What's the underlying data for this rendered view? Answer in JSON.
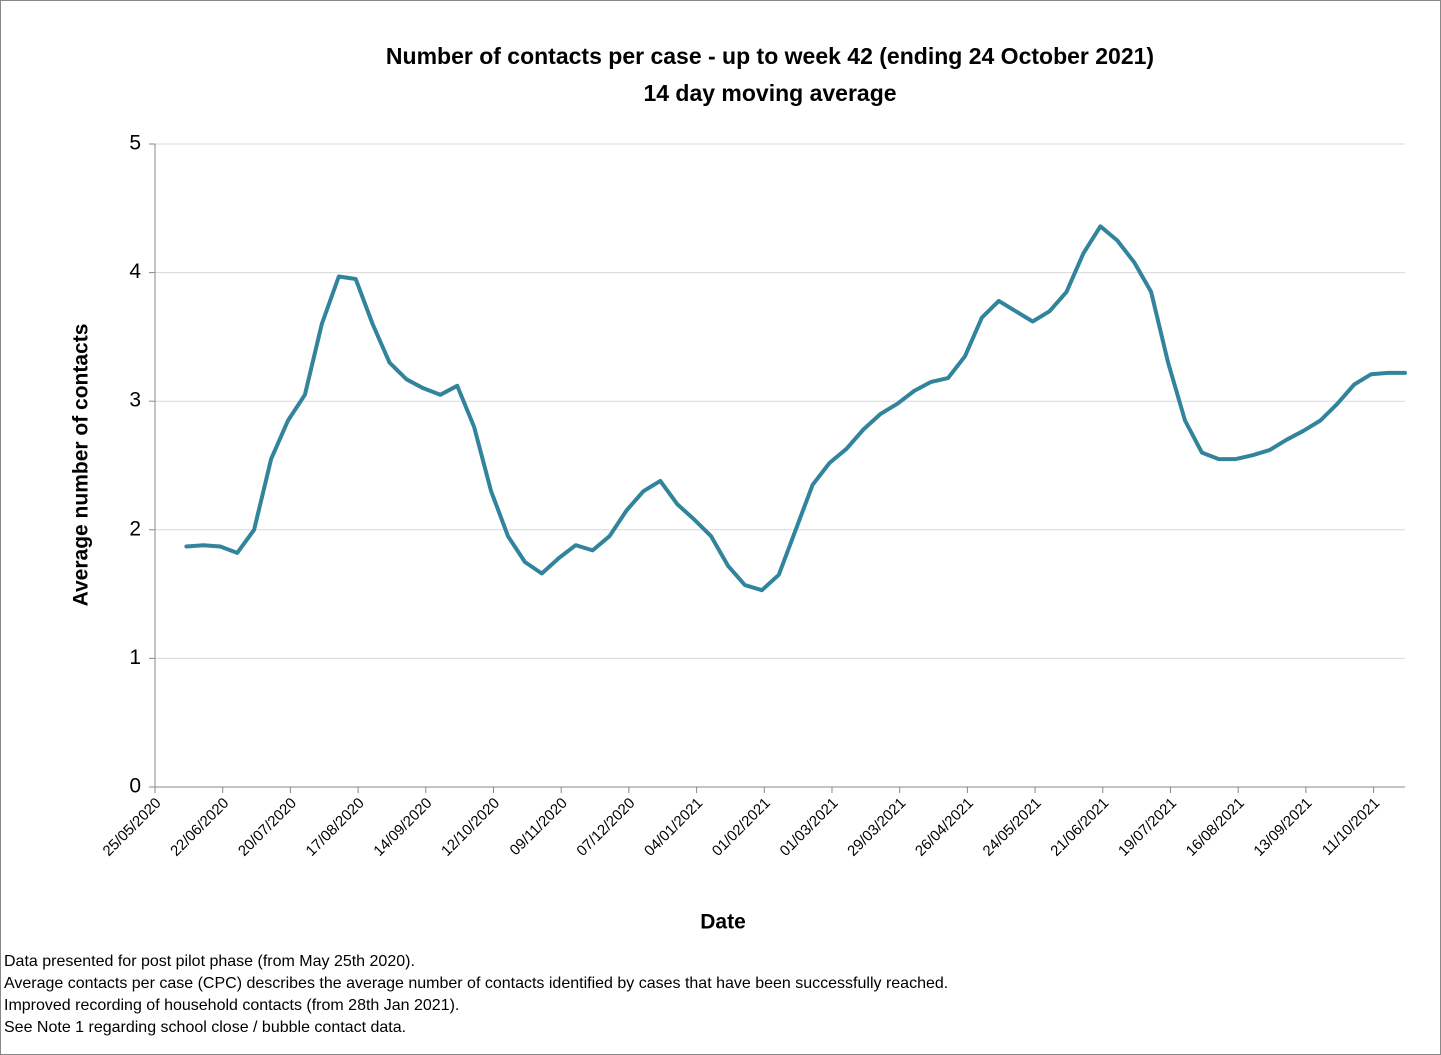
{
  "chart_data": {
    "type": "line",
    "title": "Number of contacts per case - up to week 42 (ending 24 October 2021)",
    "subtitle": "14 day moving average",
    "x_label": "Date",
    "y_label": "Average number of contacts",
    "color": "#31849b",
    "grid": true,
    "xlim": [
      "25/05/2020",
      "24/10/2021"
    ],
    "xticks": [
      "25/05/2020",
      "22/06/2020",
      "20/07/2020",
      "17/08/2020",
      "14/09/2020",
      "12/10/2020",
      "09/11/2020",
      "07/12/2020",
      "04/01/2021",
      "01/02/2021",
      "01/03/2021",
      "29/03/2021",
      "26/04/2021",
      "24/05/2021",
      "21/06/2021",
      "19/07/2021",
      "16/08/2021",
      "13/09/2021",
      "11/10/2021"
    ],
    "ylim": [
      0,
      5
    ],
    "yticks": [
      0,
      1,
      2,
      3,
      4,
      5
    ],
    "x": [
      "07/06/2020",
      "14/06/2020",
      "21/06/2020",
      "28/06/2020",
      "05/07/2020",
      "12/07/2020",
      "19/07/2020",
      "26/07/2020",
      "02/08/2020",
      "09/08/2020",
      "16/08/2020",
      "23/08/2020",
      "30/08/2020",
      "06/09/2020",
      "13/09/2020",
      "20/09/2020",
      "27/09/2020",
      "04/10/2020",
      "11/10/2020",
      "18/10/2020",
      "25/10/2020",
      "01/11/2020",
      "08/11/2020",
      "15/11/2020",
      "22/11/2020",
      "29/11/2020",
      "06/12/2020",
      "13/12/2020",
      "20/12/2020",
      "27/12/2020",
      "03/01/2021",
      "10/01/2021",
      "17/01/2021",
      "24/01/2021",
      "31/01/2021",
      "07/02/2021",
      "14/02/2021",
      "21/02/2021",
      "28/02/2021",
      "07/03/2021",
      "14/03/2021",
      "21/03/2021",
      "28/03/2021",
      "04/04/2021",
      "11/04/2021",
      "18/04/2021",
      "25/04/2021",
      "02/05/2021",
      "09/05/2021",
      "16/05/2021",
      "23/05/2021",
      "30/05/2021",
      "06/06/2021",
      "13/06/2021",
      "20/06/2021",
      "27/06/2021",
      "04/07/2021",
      "11/07/2021",
      "18/07/2021",
      "25/07/2021",
      "01/08/2021",
      "08/08/2021",
      "15/08/2021",
      "22/08/2021",
      "29/08/2021",
      "05/09/2021",
      "12/09/2021",
      "19/09/2021",
      "26/09/2021",
      "03/10/2021",
      "10/10/2021",
      "17/10/2021",
      "24/10/2021"
    ],
    "values": [
      1.87,
      1.88,
      1.87,
      1.82,
      2.0,
      2.55,
      2.85,
      3.05,
      3.6,
      3.97,
      3.95,
      3.6,
      3.3,
      3.17,
      3.1,
      3.05,
      3.12,
      2.8,
      2.3,
      1.95,
      1.75,
      1.66,
      1.78,
      1.88,
      1.84,
      1.95,
      2.15,
      2.3,
      2.38,
      2.2,
      2.08,
      1.95,
      1.72,
      1.57,
      1.53,
      1.65,
      2.0,
      2.35,
      2.52,
      2.63,
      2.78,
      2.9,
      2.98,
      3.08,
      3.15,
      3.18,
      3.35,
      3.65,
      3.78,
      3.7,
      3.62,
      3.7,
      3.85,
      4.15,
      4.36,
      4.25,
      4.08,
      3.85,
      3.3,
      2.85,
      2.6,
      2.55,
      2.55,
      2.58,
      2.62,
      2.7,
      2.77,
      2.85,
      2.98,
      3.13,
      3.21,
      3.22,
      3.22
    ],
    "notes": [
      "Data presented  for post pilot phase (from May 25th 2020).",
      "Average contacts per case (CPC) describes the average number of contacts identified by cases that have been successfully reached.",
      "Improved recording of household contacts (from 28th Jan 2021).",
      "See Note 1 regarding school close / bubble contact data."
    ]
  }
}
